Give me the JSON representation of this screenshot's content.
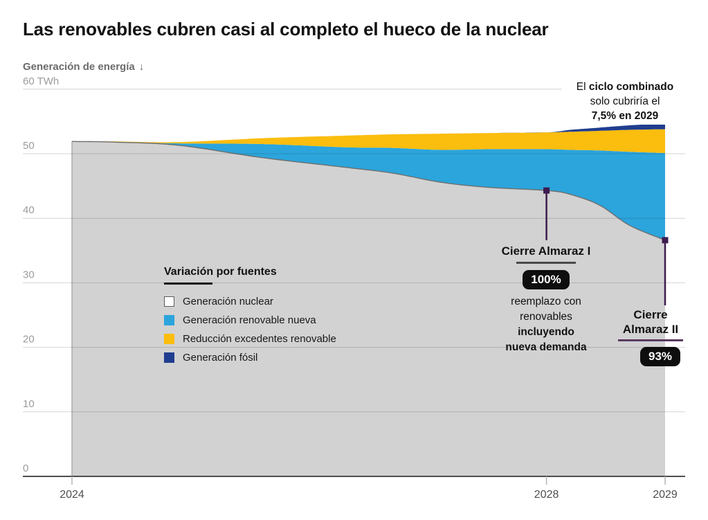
{
  "title": "Las renovables cubren casi al completo el hueco de la nuclear",
  "y_axis": {
    "label": "Generación de energía",
    "arrow": "↓"
  },
  "chart_data": {
    "type": "area",
    "stacked": true,
    "unit": "TWh",
    "xlim": [
      2024,
      2029
    ],
    "ylim": [
      0,
      60
    ],
    "grid": true,
    "x": [
      2024,
      2024.35,
      2024.9,
      2025.6,
      2026.3,
      2026.7,
      2027.1,
      2027.5,
      2028,
      2028.2,
      2028.45,
      2028.7,
      2029
    ],
    "series": [
      {
        "name": "Generación nuclear",
        "color": "#D2D2D2",
        "values": [
          51.9,
          51.8,
          51.3,
          49.4,
          47.9,
          47.0,
          45.6,
          44.8,
          44.3,
          43.7,
          42.0,
          38.9,
          36.6
        ]
      },
      {
        "name": "Generación renovable nueva",
        "color": "#2BA5DC",
        "values": [
          0,
          0.05,
          0.3,
          2.1,
          3.1,
          3.9,
          5.0,
          5.9,
          6.4,
          6.9,
          8.5,
          11.4,
          13.5
        ]
      },
      {
        "name": "Reducción excedentes renovable",
        "color": "#FBBD0E",
        "values": [
          0,
          0.05,
          0.2,
          0.9,
          1.8,
          2.1,
          2.5,
          2.5,
          2.6,
          2.8,
          3.05,
          3.4,
          3.7
        ]
      },
      {
        "name": "Generación fósil",
        "color": "#203E8F",
        "values": [
          0,
          0,
          0,
          0,
          0,
          0,
          0,
          0,
          0,
          0.3,
          0.5,
          0.7,
          0.9
        ]
      }
    ],
    "y_ticks": [
      {
        "v": 0,
        "label": "0"
      },
      {
        "v": 10,
        "label": "10"
      },
      {
        "v": 20,
        "label": "20"
      },
      {
        "v": 30,
        "label": "30"
      },
      {
        "v": 40,
        "label": "40"
      },
      {
        "v": 50,
        "label": "50"
      },
      {
        "v": 60,
        "label": "60 TWh"
      }
    ],
    "x_ticks": [
      {
        "v": 2024,
        "label": "2024"
      },
      {
        "v": 2028,
        "label": "2028"
      },
      {
        "v": 2029,
        "label": "2029"
      }
    ],
    "markers": [
      {
        "year": 2028,
        "value": 44.3,
        "connector_end_value": 36.6
      },
      {
        "year": 2029,
        "value": 36.6,
        "connector_end_value": 26.5
      }
    ]
  },
  "legend": {
    "title": "Variación por fuentes",
    "items": [
      {
        "label": "Generación nuclear",
        "color": "#FFFFFF",
        "outlined": true
      },
      {
        "label": "Generación renovable nueva",
        "color": "#2BA5DC",
        "outlined": false
      },
      {
        "label": "Reducción excedentes renovable",
        "color": "#FBBD0E",
        "outlined": false
      },
      {
        "label": "Generación fósil",
        "color": "#203E8F",
        "outlined": false
      }
    ]
  },
  "annotations": {
    "combined_cycle": {
      "line1_pre": "El ",
      "line1_bold": "ciclo combinado",
      "line2": "solo cubriría el",
      "line3_bold": "7,5% en 2029"
    },
    "almaraz1": {
      "title": "Cierre Almaraz I",
      "badge": "100%",
      "note_line1": "reemplazo con",
      "note_line2": "renovables",
      "note_line3": "incluyendo",
      "note_line4": "nueva demanda"
    },
    "almaraz2": {
      "title_line1": "Cierre",
      "title_line2": "Almaraz II",
      "badge": "93%"
    }
  },
  "colors": {
    "accent_purple": "#3D1C4F",
    "badge_bg": "#0E0E0E",
    "axis": "#4D4D4D",
    "grid_overlay": "rgba(30,30,30,0.18)",
    "nuclear_stroke": "#6F6F6F",
    "left_edge": "#ABABAB",
    "y_tick_text": "#9B9B9B",
    "x_tick_text": "#4F4F4F"
  }
}
